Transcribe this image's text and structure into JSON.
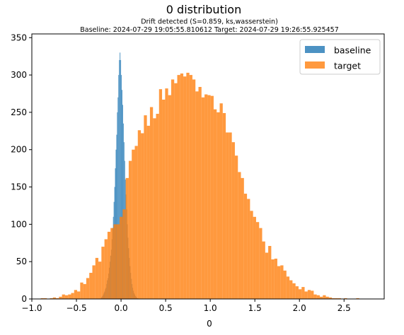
{
  "chart_data": {
    "type": "bar",
    "title": "0 distribution",
    "subtitle_line1": "Drift detected (S=0.859, ks,wasserstein)",
    "subtitle_line2": "Baseline: 2024-07-29 19:05:55.810612 Target: 2024-07-29 19:26:55.925457",
    "xlabel": "0",
    "ylabel": "",
    "xlim": [
      -1.0,
      2.95
    ],
    "ylim": [
      0,
      355
    ],
    "xticks": [
      "−1.0",
      "−0.5",
      "0.0",
      "0.5",
      "1.0",
      "1.5",
      "2.0",
      "2.5"
    ],
    "xtick_values": [
      -1.0,
      -0.5,
      0.0,
      0.5,
      1.0,
      1.5,
      2.0,
      2.5
    ],
    "yticks": [
      "0",
      "50",
      "100",
      "150",
      "200",
      "250",
      "300",
      "350"
    ],
    "ytick_values": [
      0,
      50,
      100,
      150,
      200,
      250,
      300,
      350
    ],
    "grid": false,
    "legend_position": "top-right",
    "series": [
      {
        "name": "baseline",
        "color": "#1f77b4",
        "alpha": 0.8,
        "x_start": -0.225,
        "bin_width": 0.0075,
        "values": [
          2,
          3,
          4,
          6,
          8,
          10,
          13,
          15,
          20,
          25,
          28,
          34,
          42,
          50,
          58,
          66,
          80,
          95,
          110,
          130,
          150,
          175,
          200,
          220,
          250,
          270,
          300,
          320,
          330,
          320,
          300,
          280,
          260,
          235,
          210,
          185,
          160,
          140,
          120,
          100,
          82,
          68,
          55,
          44,
          35,
          27,
          20,
          15,
          11,
          8,
          6,
          4,
          3,
          2,
          1,
          1
        ]
      },
      {
        "name": "target",
        "color": "#ff7f0e",
        "alpha": 0.8,
        "x_start": -0.9,
        "bin_width": 0.034,
        "values": [
          1,
          1,
          0,
          1,
          2,
          1,
          3,
          6,
          5,
          6,
          8,
          12,
          10,
          22,
          20,
          28,
          35,
          45,
          55,
          50,
          70,
          80,
          90,
          95,
          100,
          100,
          110,
          120,
          162,
          185,
          200,
          205,
          226,
          222,
          246,
          232,
          257,
          242,
          248,
          281,
          267,
          282,
          273,
          294,
          289,
          300,
          302,
          298,
          303,
          300,
          294,
          278,
          284,
          270,
          274,
          273,
          272,
          254,
          250,
          262,
          249,
          223,
          223,
          210,
          192,
          170,
          162,
          141,
          134,
          118,
          110,
          103,
          95,
          77,
          62,
          71,
          53,
          54,
          44,
          45,
          38,
          30,
          25,
          21,
          17,
          13,
          16,
          10,
          12,
          11,
          6,
          5,
          3,
          5,
          3,
          2,
          1,
          1,
          1,
          0,
          1,
          0,
          0,
          0,
          1
        ]
      }
    ]
  }
}
